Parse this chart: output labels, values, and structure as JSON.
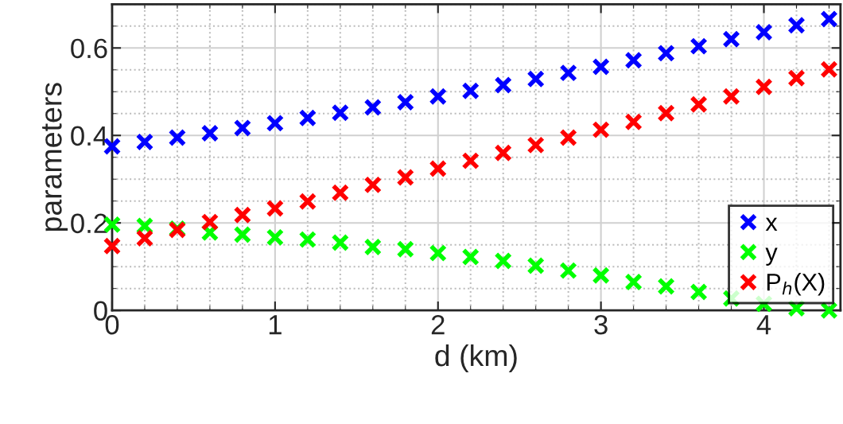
{
  "chart_data": {
    "type": "scatter",
    "xlabel": "d (km)",
    "ylabel": "parameters",
    "x": [
      0,
      0.2,
      0.4,
      0.6,
      0.8,
      1.0,
      1.2,
      1.4,
      1.6,
      1.8,
      2.0,
      2.2,
      2.4,
      2.6,
      2.8,
      3.0,
      3.2,
      3.4,
      3.6,
      3.8,
      4.0,
      4.2,
      4.4
    ],
    "series": [
      {
        "name": "x",
        "color": "#0000ff",
        "values": [
          0.375,
          0.385,
          0.395,
          0.405,
          0.417,
          0.428,
          0.44,
          0.452,
          0.464,
          0.476,
          0.489,
          0.502,
          0.515,
          0.529,
          0.543,
          0.557,
          0.572,
          0.588,
          0.604,
          0.62,
          0.636,
          0.652,
          0.666
        ]
      },
      {
        "name": "y",
        "color": "#00ff00",
        "values": [
          0.196,
          0.193,
          0.187,
          0.178,
          0.173,
          0.167,
          0.162,
          0.155,
          0.145,
          0.14,
          0.131,
          0.122,
          0.113,
          0.102,
          0.091,
          0.08,
          0.065,
          0.055,
          0.042,
          0.027,
          0.015,
          0.005,
          0.0
        ]
      },
      {
        "name": "P$_{h}$(X)",
        "color": "#ff0000",
        "values": [
          0.147,
          0.165,
          0.184,
          0.202,
          0.218,
          0.233,
          0.249,
          0.269,
          0.287,
          0.304,
          0.324,
          0.342,
          0.36,
          0.378,
          0.395,
          0.413,
          0.431,
          0.451,
          0.471,
          0.489,
          0.511,
          0.531,
          0.551
        ]
      }
    ],
    "xlim": [
      0,
      4.47
    ],
    "ylim": [
      0,
      0.7
    ],
    "xticks": [
      0,
      1,
      2,
      3,
      4
    ],
    "yticks": [
      0,
      0.2,
      0.4,
      0.6
    ],
    "grid": true,
    "legend": "lower right",
    "marker": "cross"
  }
}
